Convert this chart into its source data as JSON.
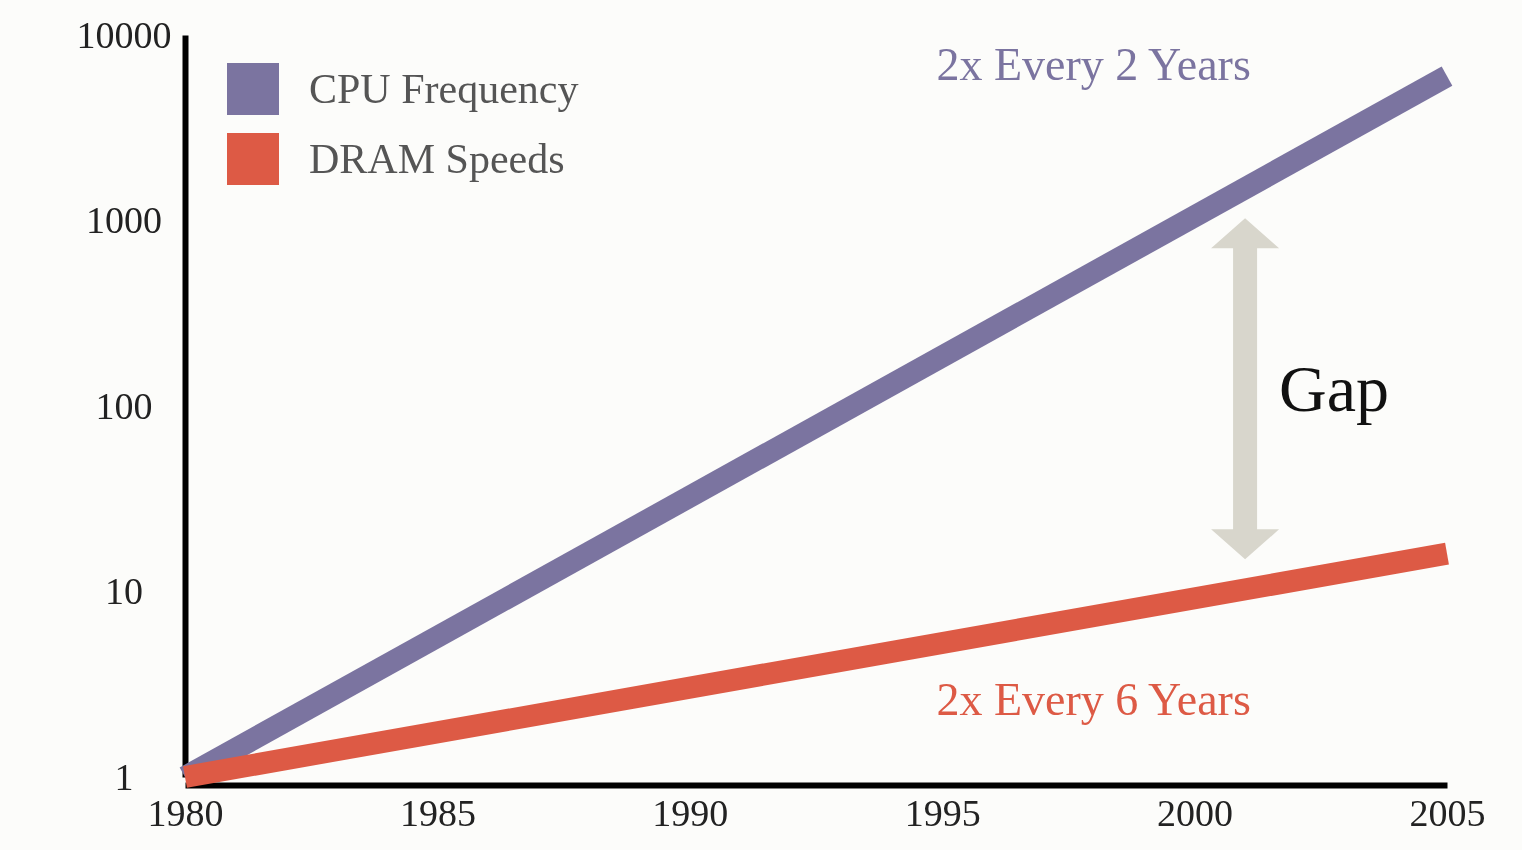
{
  "chart_data": {
    "type": "line",
    "x": [
      1980,
      2005
    ],
    "log": "y",
    "xlim": [
      1980,
      2005
    ],
    "ylim": [
      1,
      10000
    ],
    "xticks": [
      1980,
      1985,
      1990,
      1995,
      2000,
      2005
    ],
    "yticks": [
      1,
      10,
      100,
      1000,
      10000
    ],
    "legend": "top left",
    "marker": "none",
    "line_style": "solid",
    "series": [
      {
        "name": "CPU Frequency",
        "color": "#7b74a0",
        "values": [
          1,
          6000
        ]
      },
      {
        "name": "DRAM Speeds",
        "color": "#dd5a45",
        "values": [
          1,
          16
        ]
      }
    ],
    "annotations": [
      "2x Every 2 Years",
      "2x Every 6 Years",
      "Gap"
    ]
  }
}
